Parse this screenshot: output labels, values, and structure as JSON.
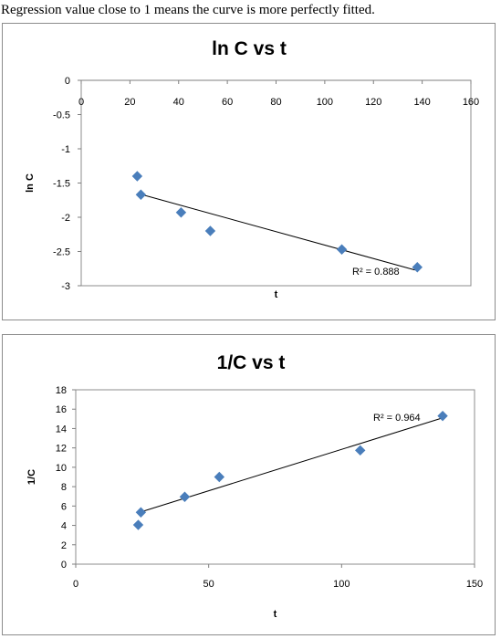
{
  "caption": "Regression value close to 1 means the curve is more perfectly fitted.",
  "colors": {
    "marker": "#4a7ebb",
    "line": "#000000",
    "frame": "#8c8c8c"
  },
  "chart_data": [
    {
      "type": "scatter",
      "title": "ln C vs t",
      "xlabel": "t",
      "ylabel": "ln C",
      "xlim": [
        0,
        160
      ],
      "ylim": [
        -3,
        0
      ],
      "xticks": [
        0,
        20,
        40,
        60,
        80,
        100,
        120,
        140,
        160
      ],
      "yticks": [
        0,
        -0.5,
        -1,
        -1.5,
        -2,
        -2.5,
        -3
      ],
      "x_axis_position": "top",
      "grid": false,
      "series": [
        {
          "x": [
            23,
            24.5,
            41,
            53,
            107,
            138
          ],
          "y": [
            -1.4,
            -1.67,
            -1.93,
            -2.2,
            -2.47,
            -2.73
          ]
        }
      ],
      "trendline": {
        "type": "linear",
        "x": [
          24,
          137
        ],
        "y": [
          -1.66,
          -2.77
        ]
      },
      "annotation": "R² = 0.888"
    },
    {
      "type": "scatter",
      "title": "1/C vs t",
      "xlabel": "t",
      "ylabel": "1/C",
      "xlim": [
        0,
        150
      ],
      "ylim": [
        0,
        18
      ],
      "xticks": [
        0,
        50,
        100,
        150
      ],
      "yticks": [
        0,
        2,
        4,
        6,
        8,
        10,
        12,
        14,
        16,
        18
      ],
      "grid": false,
      "series": [
        {
          "x": [
            23.5,
            24.5,
            41,
            54,
            107,
            138
          ],
          "y": [
            4.05,
            5.35,
            6.95,
            9.0,
            11.75,
            15.3
          ]
        }
      ],
      "trendline": {
        "type": "linear",
        "x": [
          24,
          138
        ],
        "y": [
          5.35,
          15.1
        ]
      },
      "annotation": "R² = 0.964"
    }
  ]
}
